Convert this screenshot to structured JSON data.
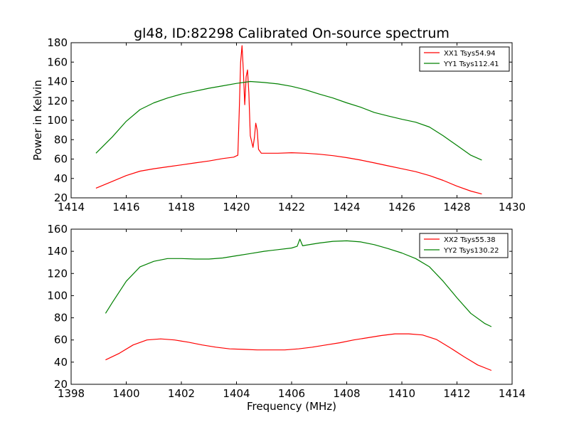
{
  "chart_data": [
    {
      "type": "line",
      "title": "gl48, ID:82298 Calibrated On-source spectrum",
      "xlabel": "",
      "ylabel": "Power in Kelvin",
      "xlim": [
        1414,
        1430
      ],
      "ylim": [
        20,
        180
      ],
      "xticks": [
        "1414",
        "1416",
        "1418",
        "1420",
        "1422",
        "1424",
        "1426",
        "1428",
        "1430"
      ],
      "yticks": [
        "20",
        "40",
        "60",
        "80",
        "100",
        "120",
        "140",
        "160",
        "180"
      ],
      "grid": false,
      "legend_position": "top-right",
      "series": [
        {
          "name": "XX1 Tsys54.94",
          "color": "#ff0000",
          "x": [
            1414.9,
            1415.5,
            1416.0,
            1416.5,
            1417.0,
            1417.5,
            1418.0,
            1418.5,
            1419.0,
            1419.5,
            1419.9,
            1420.05,
            1420.1,
            1420.15,
            1420.2,
            1420.25,
            1420.3,
            1420.35,
            1420.4,
            1420.45,
            1420.5,
            1420.6,
            1420.65,
            1420.7,
            1420.75,
            1420.8,
            1420.9,
            1421.0,
            1421.5,
            1422.0,
            1422.5,
            1423.0,
            1423.5,
            1424.0,
            1424.5,
            1425.0,
            1425.5,
            1426.0,
            1426.5,
            1427.0,
            1427.5,
            1428.0,
            1428.5,
            1428.9
          ],
          "y": [
            30,
            37,
            43,
            47.5,
            50,
            52,
            54,
            56,
            58,
            60.5,
            62,
            64,
            110,
            160,
            177,
            150,
            116,
            145,
            152,
            128,
            84,
            72,
            82,
            97,
            90,
            70,
            66,
            66,
            66,
            66.5,
            66,
            65,
            63.5,
            61.5,
            59,
            56,
            53,
            50,
            47,
            43,
            38,
            32,
            27,
            24
          ]
        },
        {
          "name": "YY1 Tsys112.41",
          "color": "#008000",
          "x": [
            1414.9,
            1415.5,
            1416.0,
            1416.5,
            1417.0,
            1417.5,
            1418.0,
            1418.5,
            1419.0,
            1419.5,
            1420.0,
            1420.5,
            1421.0,
            1421.5,
            1422.0,
            1422.5,
            1423.0,
            1423.5,
            1424.0,
            1424.5,
            1425.0,
            1425.5,
            1426.0,
            1426.5,
            1427.0,
            1427.5,
            1428.0,
            1428.5,
            1428.9
          ],
          "y": [
            66,
            83,
            99,
            111,
            118,
            123,
            127,
            130,
            133,
            135.5,
            138,
            140,
            139,
            137.5,
            135,
            131.5,
            127,
            123,
            118,
            113.5,
            108,
            104.5,
            101,
            98,
            93,
            84,
            74,
            64,
            59
          ]
        }
      ]
    },
    {
      "type": "line",
      "title": "",
      "xlabel": "Frequency (MHz)",
      "ylabel": "",
      "xlim": [
        1398,
        1414
      ],
      "ylim": [
        20,
        160
      ],
      "xticks": [
        "1398",
        "1400",
        "1402",
        "1404",
        "1406",
        "1408",
        "1410",
        "1412",
        "1414"
      ],
      "yticks": [
        "20",
        "40",
        "60",
        "80",
        "100",
        "120",
        "140",
        "160"
      ],
      "grid": false,
      "legend_position": "top-right",
      "series": [
        {
          "name": "XX2 Tsys55.38",
          "color": "#ff0000",
          "x": [
            1399.25,
            1399.75,
            1400.25,
            1400.75,
            1401.25,
            1401.75,
            1402.25,
            1402.75,
            1403.25,
            1403.75,
            1404.25,
            1404.75,
            1405.25,
            1405.75,
            1406.25,
            1406.75,
            1407.25,
            1407.75,
            1408.25,
            1408.75,
            1409.25,
            1409.75,
            1410.25,
            1410.75,
            1411.25,
            1411.75,
            1412.25,
            1412.75,
            1413.25
          ],
          "y": [
            42,
            48,
            55.5,
            60,
            61,
            60,
            58,
            55.5,
            53.5,
            52,
            51.5,
            51,
            51,
            51,
            52,
            53.5,
            55.5,
            57.5,
            60,
            62,
            64,
            65.5,
            65.5,
            64.5,
            60.5,
            53,
            45,
            37.5,
            32.5
          ]
        },
        {
          "name": "YY2 Tsys130.22",
          "color": "#008000",
          "x": [
            1399.25,
            1399.5,
            1400.0,
            1400.5,
            1401.0,
            1401.5,
            1402.0,
            1402.5,
            1403.0,
            1403.5,
            1404.0,
            1404.5,
            1405.0,
            1405.5,
            1406.0,
            1406.2,
            1406.3,
            1406.4,
            1406.5,
            1407.0,
            1407.5,
            1408.0,
            1408.5,
            1409.0,
            1409.5,
            1410.0,
            1410.5,
            1411.0,
            1411.5,
            1412.0,
            1412.5,
            1413.0,
            1413.25
          ],
          "y": [
            84,
            94,
            113,
            126,
            131,
            133.5,
            133.5,
            133,
            133,
            134,
            136,
            138,
            140,
            141.5,
            143,
            144.5,
            151,
            145,
            145.5,
            147.5,
            149,
            149.5,
            148.5,
            146,
            142.5,
            138.5,
            133.5,
            126,
            113,
            98,
            84,
            75,
            72
          ]
        }
      ]
    }
  ]
}
